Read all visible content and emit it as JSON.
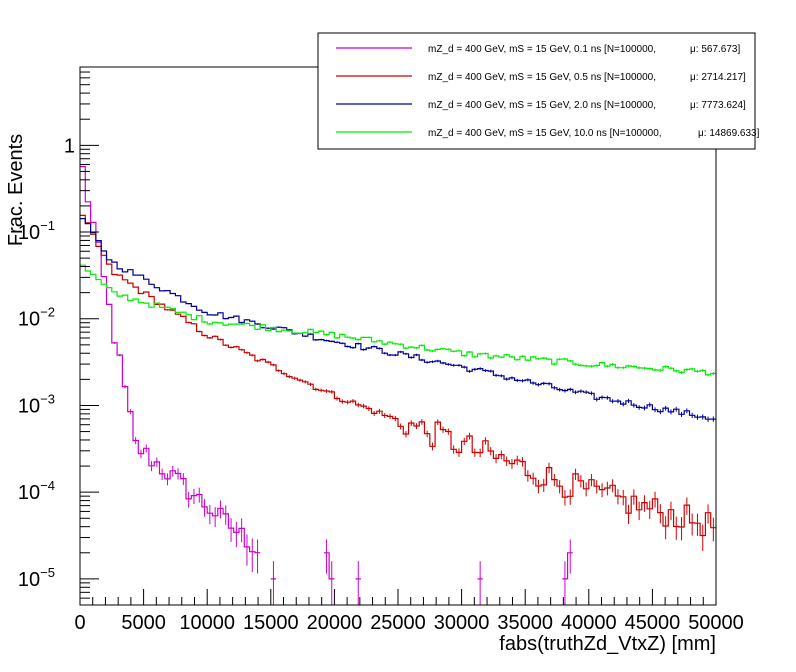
{
  "chart_data": {
    "type": "histogram-step",
    "title": "",
    "xlabel": "fabs(truthZd_VtxZ) [mm]",
    "ylabel": "Frac. Events",
    "xlim": [
      0,
      50000
    ],
    "ylim": [
      5e-06,
      8
    ],
    "yscale": "log",
    "bins": 120,
    "x_ticks": [
      {
        "v": 0,
        "label": "0"
      },
      {
        "v": 5000,
        "label": "5000"
      },
      {
        "v": 10000,
        "label": "10000"
      },
      {
        "v": 15000,
        "label": "15000"
      },
      {
        "v": 20000,
        "label": "20000"
      },
      {
        "v": 25000,
        "label": "25000"
      },
      {
        "v": 30000,
        "label": "30000"
      },
      {
        "v": 35000,
        "label": "35000"
      },
      {
        "v": 40000,
        "label": "40000"
      },
      {
        "v": 45000,
        "label": "45000"
      },
      {
        "v": 50000,
        "label": "50000"
      }
    ],
    "y_ticks": [
      {
        "v": 1,
        "base": "1",
        "exp": ""
      },
      {
        "v": 0.1,
        "base": "10",
        "exp": "−1"
      },
      {
        "v": 0.01,
        "base": "10",
        "exp": "−2"
      },
      {
        "v": 0.001,
        "base": "10",
        "exp": "−3"
      },
      {
        "v": 0.0001,
        "base": "10",
        "exp": "−4"
      },
      {
        "v": 1e-05,
        "base": "10",
        "exp": "−5"
      }
    ],
    "legend_position": "top-right",
    "series": [
      {
        "name": "0.1 ns",
        "label": "mZ_d = 400 GeV, mS = 15 GeV, 0.1 ns [N=100000,",
        "mean": "μ: 567.673]",
        "color": "#cc00cc",
        "mean_mm": 567.673,
        "first_value": 0.8,
        "floor": 1e-05
      },
      {
        "name": "0.5 ns",
        "label": "mZ_d = 400 GeV, mS = 15 GeV, 0.5 ns [N=100000,",
        "mean": "μ: 2714.217]",
        "color": "#cc0000",
        "mean_mm": 2714.217,
        "anchor_values": [
          [
            250,
            0.15
          ],
          [
            2500,
            0.035
          ],
          [
            10000,
            0.0065
          ],
          [
            20000,
            0.0013
          ],
          [
            30000,
            0.00035
          ],
          [
            40000,
            0.0001
          ],
          [
            50000,
            4e-05
          ]
        ]
      },
      {
        "name": "2.0 ns",
        "label": "mZ_d = 400 GeV, mS = 15 GeV, 2.0 ns [N=100000,",
        "mean": "μ: 7773.624]",
        "color": "#000099",
        "mean_mm": 7773.624,
        "anchor_values": [
          [
            250,
            0.14
          ],
          [
            2500,
            0.045
          ],
          [
            10000,
            0.012
          ],
          [
            20000,
            0.0055
          ],
          [
            30000,
            0.0028
          ],
          [
            40000,
            0.0013
          ],
          [
            50000,
            0.0007
          ]
        ]
      },
      {
        "name": "10.0 ns",
        "label": "mZ_d = 400 GeV, mS = 15 GeV, 10.0 ns [N=100000,",
        "mean": "μ: 14869.633]",
        "color": "#00ee00",
        "mean_mm": 14869.633,
        "anchor_values": [
          [
            250,
            0.04
          ],
          [
            2500,
            0.02
          ],
          [
            10000,
            0.0095
          ],
          [
            20000,
            0.0065
          ],
          [
            30000,
            0.004
          ],
          [
            40000,
            0.003
          ],
          [
            50000,
            0.0024
          ]
        ]
      }
    ]
  }
}
